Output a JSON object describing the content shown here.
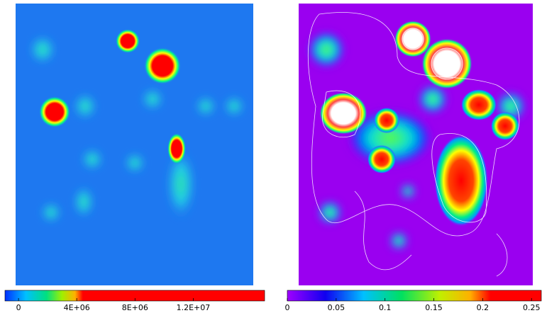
{
  "chart_data": [
    {
      "type": "heatmap",
      "clim": [
        -930000,
        16900000
      ],
      "cticks": [
        0,
        {
          "value": 4000000,
          "label": "4E+06"
        },
        {
          "value": 8000000,
          "label": "8E+06"
        },
        {
          "value": 12000000,
          "label": "1.2E+07"
        }
      ]
    },
    {
      "type": "heatmap",
      "clim": [
        0,
        0.26
      ],
      "cticks": [
        0,
        0.05,
        0.1,
        0.15,
        0.2,
        0.25
      ]
    }
  ]
}
